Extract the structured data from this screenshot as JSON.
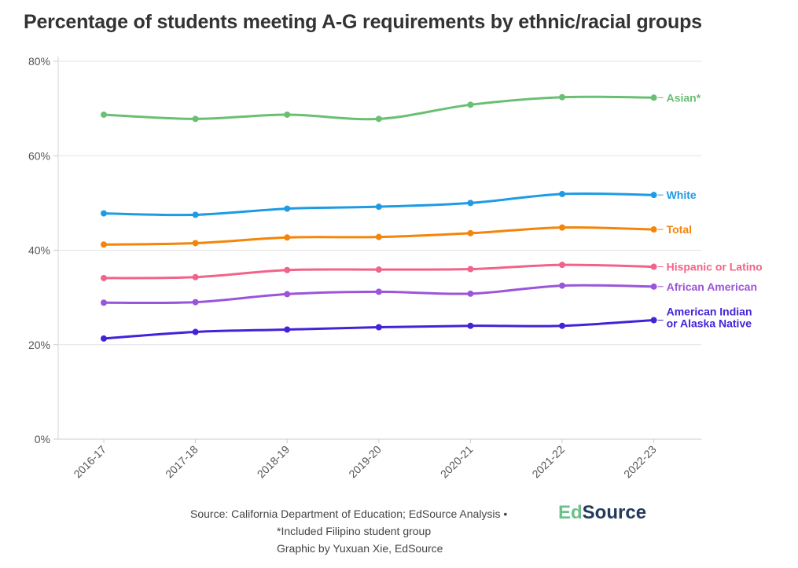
{
  "title": "Percentage of students meeting A-G requirements by ethnic/racial groups",
  "chart_data": {
    "type": "line",
    "title": "Percentage of students meeting A-G requirements by ethnic/racial groups",
    "categories": [
      "2016-17",
      "2017-18",
      "2018-19",
      "2019-20",
      "2020-21",
      "2021-22",
      "2022-23"
    ],
    "ylim": [
      0,
      80
    ],
    "yticks": [
      0,
      20,
      40,
      60,
      80
    ],
    "ytick_labels": [
      "0%",
      "20%",
      "40%",
      "60%",
      "80%"
    ],
    "grid": true,
    "legend": "direct labels at right end of lines",
    "series": [
      {
        "name": "Asian*",
        "label_lines": [
          "Asian*"
        ],
        "color": "#6abf73",
        "values": [
          68.7,
          67.8,
          68.7,
          67.8,
          70.8,
          72.4,
          72.3
        ]
      },
      {
        "name": "White",
        "label_lines": [
          "White"
        ],
        "color": "#1e9be3",
        "values": [
          47.8,
          47.5,
          48.8,
          49.2,
          50.0,
          51.9,
          51.7
        ]
      },
      {
        "name": "Total",
        "label_lines": [
          "Total"
        ],
        "color": "#f3850a",
        "values": [
          41.2,
          41.5,
          42.7,
          42.8,
          43.6,
          44.8,
          44.4
        ]
      },
      {
        "name": "Hispanic or Latino",
        "label_lines": [
          "Hispanic or Latino"
        ],
        "color": "#f0648a",
        "values": [
          34.1,
          34.3,
          35.8,
          35.9,
          36.0,
          36.9,
          36.5
        ]
      },
      {
        "name": "African American",
        "label_lines": [
          "African American"
        ],
        "color": "#9a55da",
        "values": [
          28.9,
          29.0,
          30.7,
          31.2,
          30.8,
          32.5,
          32.3
        ]
      },
      {
        "name": "American Indian or Alaska Native",
        "label_lines": [
          "American Indian",
          "or Alaska Native"
        ],
        "color": "#4422d8",
        "values": [
          21.3,
          22.7,
          23.2,
          23.7,
          24.0,
          24.0,
          25.2
        ]
      }
    ]
  },
  "footer": {
    "line1": "Source: California Department of Education; EdSource Analysis •",
    "line2": "*Included Filipino student group",
    "line3": "Graphic by Yuxuan Xie, EdSource",
    "logo_part1": "Ed",
    "logo_part2": "Source"
  }
}
